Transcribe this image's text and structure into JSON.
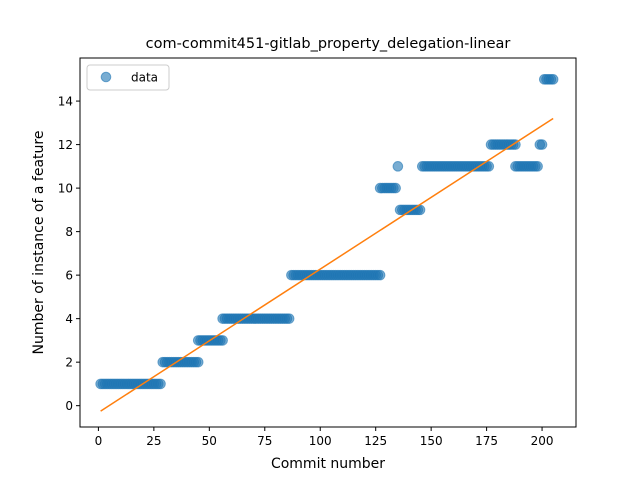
{
  "chart_data": {
    "type": "scatter",
    "title": "com-commit451-gitlab_property_delegation-linear",
    "xlabel": "Commit number",
    "ylabel": "Number of instance of a feature",
    "xlim": [
      -8.3,
      215.3
    ],
    "ylim": [
      -0.98,
      15.98
    ],
    "xticks": [
      0,
      25,
      50,
      75,
      100,
      125,
      150,
      175,
      200
    ],
    "yticks": [
      0,
      2,
      4,
      6,
      8,
      10,
      12,
      14
    ],
    "legend": {
      "position": "upper-left",
      "entries": [
        "data"
      ]
    },
    "colors": {
      "points": "#1f77b4",
      "fit_line": "#ff7f0e"
    },
    "series": [
      {
        "name": "data",
        "kind": "points",
        "segments": [
          {
            "x_start": 1,
            "x_end": 28,
            "y": 1
          },
          {
            "x_start": 29,
            "x_end": 45,
            "y": 2
          },
          {
            "x_start": 45,
            "x_end": 56,
            "y": 3
          },
          {
            "x_start": 56,
            "x_end": 86,
            "y": 4
          },
          {
            "x_start": 87,
            "x_end": 127,
            "y": 6
          },
          {
            "x_start": 127,
            "x_end": 134,
            "y": 10
          },
          {
            "x_start": 135,
            "x_end": 135,
            "y": 11
          },
          {
            "x_start": 136,
            "x_end": 145,
            "y": 9
          },
          {
            "x_start": 146,
            "x_end": 176,
            "y": 11
          },
          {
            "x_start": 177,
            "x_end": 188,
            "y": 12
          },
          {
            "x_start": 188,
            "x_end": 198,
            "y": 11
          },
          {
            "x_start": 199,
            "x_end": 200,
            "y": 12
          },
          {
            "x_start": 201,
            "x_end": 205,
            "y": 15
          }
        ]
      },
      {
        "name": "",
        "kind": "line",
        "x": [
          1,
          205
        ],
        "y": [
          -0.25,
          13.2
        ]
      }
    ]
  }
}
